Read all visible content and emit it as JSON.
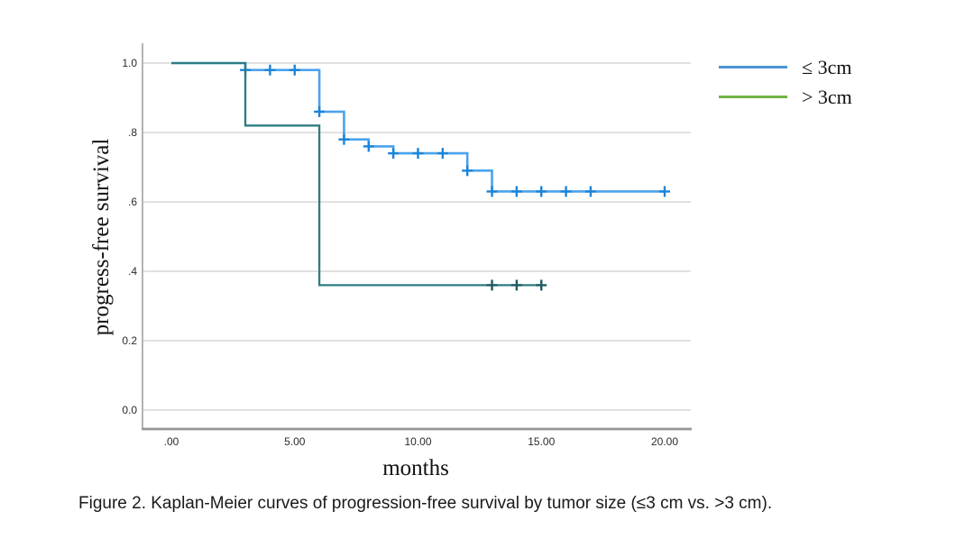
{
  "page": {
    "background": "#ffffff"
  },
  "caption": "Figure 2. Kaplan-Meier curves of progression-free survival by tumor size (≤3 cm vs. >3 cm).",
  "legend": {
    "position": "top-right-outside",
    "items": [
      {
        "label": "≤ 3cm",
        "color": "#4f92d6"
      },
      {
        "label": "> 3cm",
        "color": "#72b446"
      }
    ]
  },
  "chart_data": {
    "type": "line",
    "subtype": "kaplan-meier-step",
    "title": "",
    "xlabel": "months",
    "ylabel": "progress-free survival",
    "xlim": [
      0,
      20
    ],
    "ylim": [
      0,
      1
    ],
    "grid": "horizontal",
    "grid_color": "#cfcfcf",
    "axis_color": "#b3b3b3",
    "baseline_color": "#979797",
    "tick_label_color": "#2b2b2b",
    "x_ticks": [
      {
        "value": 0,
        "label": ".00"
      },
      {
        "value": 5,
        "label": "5.00"
      },
      {
        "value": 10,
        "label": "10.00"
      },
      {
        "value": 15,
        "label": "15.00"
      },
      {
        "value": 20,
        "label": "20.00"
      }
    ],
    "y_ticks": [
      {
        "value": 0.0,
        "label": "0.0"
      },
      {
        "value": 0.2,
        "label": "0.2"
      },
      {
        "value": 0.4,
        "label": ".4"
      },
      {
        "value": 0.6,
        "label": ".6"
      },
      {
        "value": 0.8,
        "label": ".8"
      },
      {
        "value": 1.0,
        "label": "1.0"
      }
    ],
    "series": [
      {
        "name": "≤ 3cm",
        "line_color": "#4ba3ec",
        "censor_color": "#1b84d8",
        "steps_x_y": [
          [
            0,
            1.0
          ],
          [
            3,
            1.0
          ],
          [
            3,
            0.98
          ],
          [
            6,
            0.98
          ],
          [
            6,
            0.86
          ],
          [
            7,
            0.86
          ],
          [
            7,
            0.78
          ],
          [
            8,
            0.78
          ],
          [
            8,
            0.76
          ],
          [
            9,
            0.76
          ],
          [
            9,
            0.74
          ],
          [
            12,
            0.74
          ],
          [
            12,
            0.69
          ],
          [
            13,
            0.69
          ],
          [
            13,
            0.63
          ],
          [
            20,
            0.63
          ]
        ],
        "censor_marks_x_y": [
          [
            3,
            0.98
          ],
          [
            4,
            0.98
          ],
          [
            5,
            0.98
          ],
          [
            6,
            0.86
          ],
          [
            7,
            0.78
          ],
          [
            8,
            0.76
          ],
          [
            9,
            0.74
          ],
          [
            10,
            0.74
          ],
          [
            11,
            0.74
          ],
          [
            12,
            0.69
          ],
          [
            13,
            0.63
          ],
          [
            14,
            0.63
          ],
          [
            15,
            0.63
          ],
          [
            16,
            0.63
          ],
          [
            17,
            0.63
          ],
          [
            20,
            0.63
          ]
        ]
      },
      {
        "name": "> 3cm",
        "line_color": "#2e7c80",
        "censor_color": "#1d5c60",
        "steps_x_y": [
          [
            0,
            1.0
          ],
          [
            3,
            1.0
          ],
          [
            3,
            0.82
          ],
          [
            6,
            0.82
          ],
          [
            6,
            0.36
          ],
          [
            15,
            0.36
          ]
        ],
        "censor_marks_x_y": [
          [
            13,
            0.36
          ],
          [
            14,
            0.36
          ],
          [
            15,
            0.36
          ]
        ]
      }
    ]
  }
}
